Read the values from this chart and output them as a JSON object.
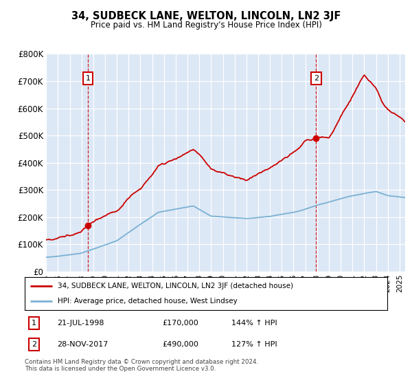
{
  "title": "34, SUDBECK LANE, WELTON, LINCOLN, LN2 3JF",
  "subtitle": "Price paid vs. HM Land Registry's House Price Index (HPI)",
  "ylim": [
    0,
    800000
  ],
  "yticks": [
    0,
    100000,
    200000,
    300000,
    400000,
    500000,
    600000,
    700000,
    800000
  ],
  "ytick_labels": [
    "£0",
    "£100K",
    "£200K",
    "£300K",
    "£400K",
    "£500K",
    "£600K",
    "£700K",
    "£800K"
  ],
  "hpi_color": "#7ab0d4",
  "price_color": "#cc0000",
  "bg_color": "#dce8f5",
  "sale1_date": 1998.55,
  "sale1_price": 170000,
  "sale2_date": 2017.91,
  "sale2_price": 490000,
  "legend_price_label": "34, SUDBECK LANE, WELTON, LINCOLN, LN2 3JF (detached house)",
  "legend_hpi_label": "HPI: Average price, detached house, West Lindsey",
  "footer": "Contains HM Land Registry data © Crown copyright and database right 2024.\nThis data is licensed under the Open Government Licence v3.0.",
  "xmin": 1995.0,
  "xmax": 2025.5
}
